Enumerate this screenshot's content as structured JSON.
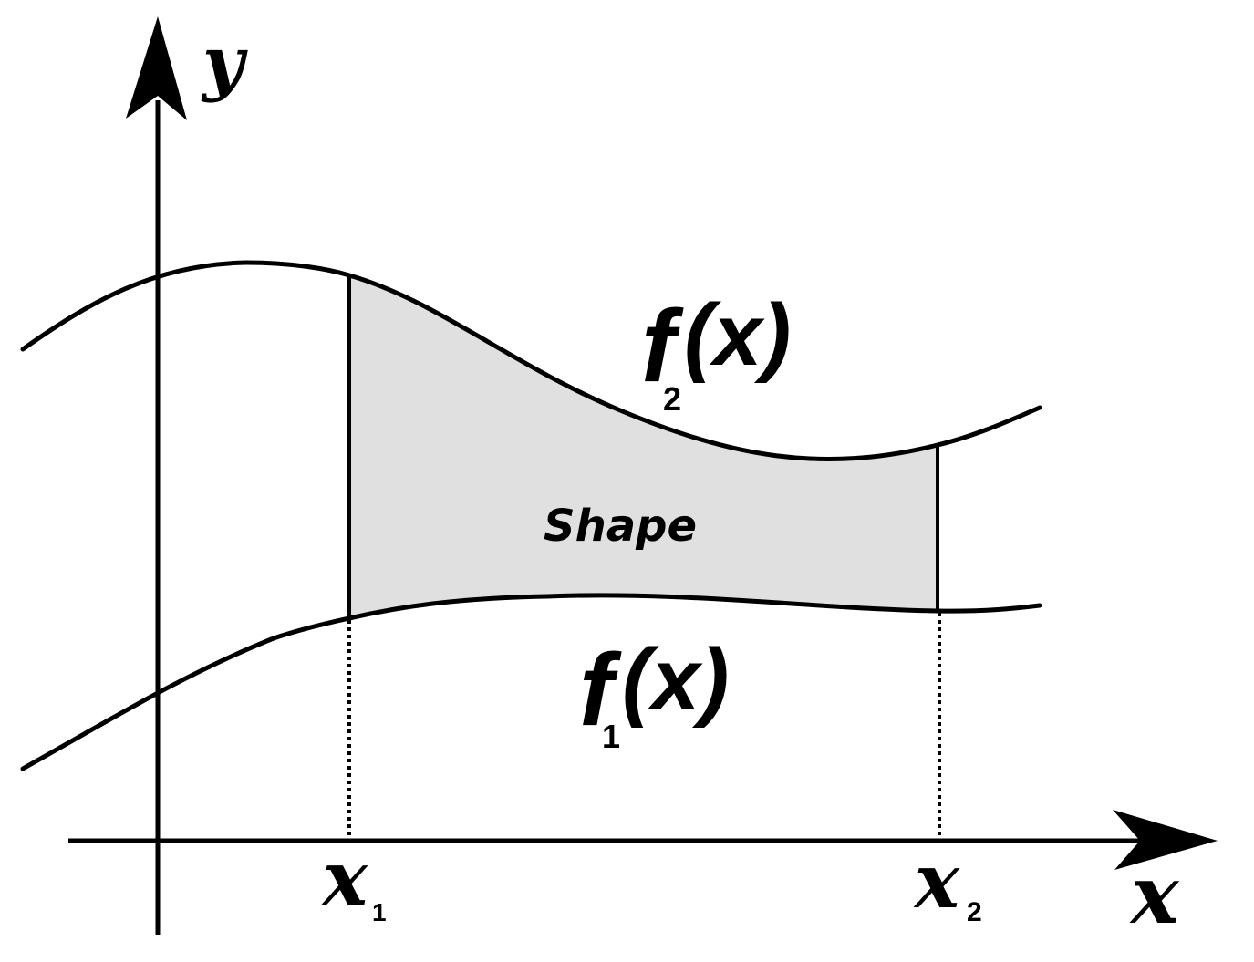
{
  "diagram": {
    "y_axis_label": "y",
    "x_axis_label": "x",
    "region_label": "Shape",
    "upper_curve": {
      "name": "f",
      "subscript": "2",
      "arg": "(x)"
    },
    "lower_curve": {
      "name": "f",
      "subscript": "1",
      "arg": "(x)"
    },
    "bound_left": {
      "name": "x",
      "subscript": "1"
    },
    "bound_right": {
      "name": "x",
      "subscript": "2"
    },
    "colors": {
      "region_fill": "#e0e0e0",
      "stroke": "#000000"
    }
  }
}
